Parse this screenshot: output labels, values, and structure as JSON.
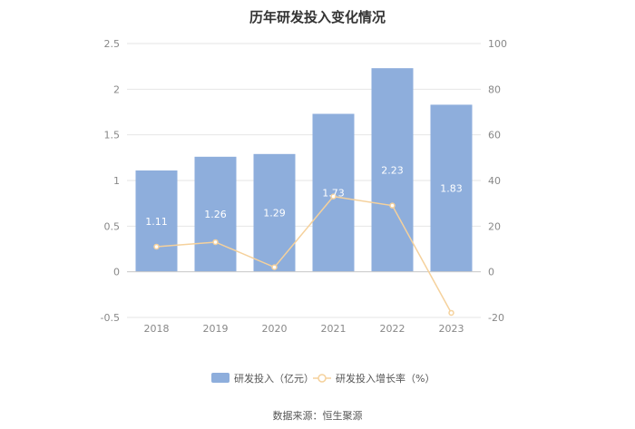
{
  "title": "历年研发投入变化情况",
  "source": "数据来源：恒生聚源",
  "colors": {
    "bar": "#8eaedc",
    "line": "#f5d19c",
    "grid": "#e6e6e6",
    "axis": "#cccccc",
    "text": "#888888"
  },
  "chart_data": {
    "type": "bar",
    "categories": [
      "2018",
      "2019",
      "2020",
      "2021",
      "2022",
      "2023"
    ],
    "series": [
      {
        "name": "研发投入（亿元）",
        "type": "bar",
        "axis": "left",
        "values": [
          1.11,
          1.26,
          1.29,
          1.73,
          2.23,
          1.83
        ],
        "labels": [
          "1.11",
          "1.26",
          "1.29",
          "1.73",
          "2.23",
          "1.83"
        ]
      },
      {
        "name": "研发投入增长率（%）",
        "type": "line",
        "axis": "right",
        "values": [
          11,
          13,
          2,
          33,
          29,
          -18
        ]
      }
    ],
    "y_left": {
      "lim": [
        -0.5,
        2.5
      ],
      "ticks": [
        "2.5",
        "2",
        "1.5",
        "1",
        "0.5",
        "0",
        "-0.5"
      ]
    },
    "y_right": {
      "lim": [
        -20,
        100
      ],
      "ticks": [
        "100",
        "80",
        "60",
        "40",
        "20",
        "0",
        "-20"
      ]
    },
    "grid": true,
    "legend_position": "bottom"
  }
}
